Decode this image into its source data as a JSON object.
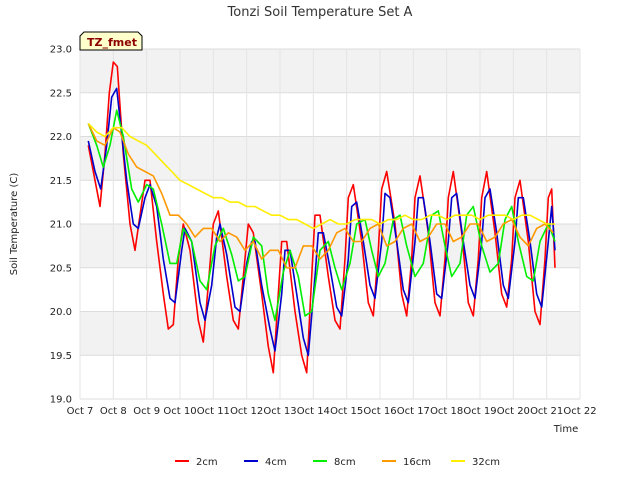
{
  "chart_data": {
    "type": "line",
    "title": "Tonzi Soil Temperature Set A",
    "xlabel": "Time",
    "ylabel": "Soil Temperature (C)",
    "station_label": "TZ_fmet",
    "xlim": [
      7,
      22
    ],
    "ylim": [
      19.0,
      23.0
    ],
    "x_ticks": [
      7,
      8,
      9,
      10,
      11,
      12,
      13,
      14,
      15,
      16,
      17,
      18,
      19,
      20,
      21,
      22
    ],
    "x_tick_labels": [
      "Oct 7",
      "Oct 8",
      "Oct 9",
      "Oct 10",
      "Oct 11",
      "Oct 12",
      "Oct 13",
      "Oct 14",
      "Oct 15",
      "Oct 16",
      "Oct 17",
      "Oct 18",
      "Oct 19",
      "Oct 20",
      "Oct 21",
      "Oct 22"
    ],
    "y_ticks": [
      19.0,
      19.5,
      20.0,
      20.5,
      21.0,
      21.5,
      22.0,
      22.5,
      23.0
    ],
    "y_tick_labels": [
      "19.0",
      "19.5",
      "20.0",
      "20.5",
      "21.0",
      "21.5",
      "22.0",
      "22.5",
      "23.0"
    ],
    "grid": true,
    "legend_position": "bottom",
    "series": [
      {
        "name": "2cm",
        "color": "#ff0000",
        "x": [
          7.25,
          7.45,
          7.6,
          7.75,
          7.88,
          8.0,
          8.12,
          8.3,
          8.5,
          8.65,
          8.8,
          8.95,
          9.1,
          9.3,
          9.5,
          9.65,
          9.8,
          9.95,
          10.1,
          10.3,
          10.55,
          10.7,
          10.85,
          11.0,
          11.15,
          11.4,
          11.6,
          11.75,
          11.9,
          12.05,
          12.2,
          12.45,
          12.65,
          12.8,
          12.95,
          13.05,
          13.2,
          13.45,
          13.65,
          13.8,
          13.95,
          14.05,
          14.2,
          14.45,
          14.65,
          14.8,
          14.95,
          15.05,
          15.2,
          15.45,
          15.65,
          15.8,
          15.95,
          16.05,
          16.2,
          16.45,
          16.65,
          16.8,
          16.95,
          17.05,
          17.2,
          17.45,
          17.65,
          17.8,
          17.95,
          18.05,
          18.2,
          18.45,
          18.65,
          18.8,
          18.95,
          19.05,
          19.2,
          19.45,
          19.65,
          19.8,
          19.95,
          20.05,
          20.2,
          20.45,
          20.65,
          20.8,
          20.95,
          21.05,
          21.15,
          21.25
        ],
        "values": [
          21.9,
          21.5,
          21.2,
          21.8,
          22.5,
          22.85,
          22.8,
          21.8,
          21.0,
          20.7,
          21.1,
          21.5,
          21.5,
          20.8,
          20.2,
          19.8,
          19.85,
          20.6,
          21.0,
          20.7,
          19.9,
          19.65,
          20.3,
          21.0,
          21.15,
          20.4,
          19.9,
          19.8,
          20.4,
          21.0,
          20.9,
          20.2,
          19.6,
          19.3,
          20.2,
          20.8,
          20.8,
          20.0,
          19.5,
          19.3,
          20.4,
          21.1,
          21.1,
          20.4,
          19.9,
          19.8,
          20.6,
          21.3,
          21.45,
          20.8,
          20.1,
          19.95,
          20.7,
          21.4,
          21.6,
          21.0,
          20.2,
          19.95,
          20.6,
          21.3,
          21.55,
          20.9,
          20.1,
          19.95,
          20.6,
          21.3,
          21.6,
          20.9,
          20.1,
          19.95,
          20.6,
          21.3,
          21.6,
          20.9,
          20.2,
          20.05,
          20.6,
          21.3,
          21.5,
          20.8,
          20.0,
          19.85,
          20.6,
          21.3,
          21.4,
          20.5
        ]
      },
      {
        "name": "4cm",
        "color": "#0000cc",
        "x": [
          7.25,
          7.45,
          7.62,
          7.8,
          7.95,
          8.1,
          8.2,
          8.4,
          8.6,
          8.75,
          8.95,
          9.1,
          9.3,
          9.5,
          9.7,
          9.85,
          10.05,
          10.15,
          10.35,
          10.6,
          10.75,
          10.95,
          11.1,
          11.2,
          11.4,
          11.65,
          11.8,
          12.0,
          12.15,
          12.25,
          12.45,
          12.7,
          12.85,
          13.05,
          13.15,
          13.3,
          13.5,
          13.7,
          13.85,
          14.05,
          14.15,
          14.3,
          14.5,
          14.7,
          14.85,
          15.05,
          15.15,
          15.3,
          15.5,
          15.7,
          15.85,
          16.05,
          16.15,
          16.3,
          16.5,
          16.7,
          16.85,
          17.05,
          17.15,
          17.3,
          17.5,
          17.7,
          17.85,
          18.05,
          18.15,
          18.3,
          18.5,
          18.7,
          18.85,
          19.05,
          19.15,
          19.3,
          19.5,
          19.7,
          19.85,
          20.05,
          20.15,
          20.3,
          20.5,
          20.7,
          20.85,
          21.05,
          21.15,
          21.25
        ],
        "values": [
          21.95,
          21.6,
          21.4,
          21.9,
          22.45,
          22.55,
          22.2,
          21.5,
          21.0,
          20.95,
          21.3,
          21.45,
          21.2,
          20.6,
          20.15,
          20.1,
          20.7,
          20.95,
          20.8,
          20.1,
          19.9,
          20.3,
          20.85,
          21.0,
          20.65,
          20.05,
          20.0,
          20.55,
          20.8,
          20.8,
          20.3,
          19.8,
          19.55,
          20.2,
          20.7,
          20.7,
          20.2,
          19.7,
          19.5,
          20.4,
          20.9,
          20.9,
          20.5,
          20.05,
          19.95,
          20.6,
          21.2,
          21.25,
          20.8,
          20.3,
          20.15,
          20.8,
          21.35,
          21.3,
          20.8,
          20.25,
          20.1,
          20.8,
          21.3,
          21.3,
          20.8,
          20.2,
          20.15,
          20.8,
          21.3,
          21.35,
          20.8,
          20.3,
          20.15,
          20.8,
          21.3,
          21.4,
          20.9,
          20.3,
          20.15,
          20.8,
          21.3,
          21.3,
          20.8,
          20.2,
          20.05,
          20.8,
          21.2,
          20.7
        ]
      },
      {
        "name": "8cm",
        "color": "#00ee00",
        "x": [
          7.25,
          7.5,
          7.7,
          7.9,
          8.1,
          8.3,
          8.55,
          8.75,
          9.0,
          9.2,
          9.45,
          9.7,
          9.9,
          10.1,
          10.35,
          10.6,
          10.8,
          11.05,
          11.3,
          11.55,
          11.75,
          11.95,
          12.2,
          12.45,
          12.65,
          12.85,
          13.1,
          13.3,
          13.55,
          13.75,
          13.95,
          14.2,
          14.45,
          14.65,
          14.85,
          15.1,
          15.3,
          15.55,
          15.75,
          15.95,
          16.15,
          16.4,
          16.6,
          16.8,
          17.05,
          17.3,
          17.55,
          17.75,
          17.95,
          18.15,
          18.4,
          18.6,
          18.8,
          19.05,
          19.3,
          19.55,
          19.75,
          19.95,
          20.15,
          20.4,
          20.6,
          20.8,
          21.05,
          21.25
        ],
        "values": [
          22.15,
          21.9,
          21.65,
          21.9,
          22.3,
          22.0,
          21.4,
          21.25,
          21.45,
          21.4,
          21.0,
          20.55,
          20.55,
          20.95,
          20.8,
          20.35,
          20.25,
          20.75,
          20.95,
          20.65,
          20.35,
          20.4,
          20.85,
          20.75,
          20.2,
          19.9,
          20.45,
          20.7,
          20.4,
          19.95,
          20.0,
          20.7,
          20.8,
          20.5,
          20.25,
          20.55,
          21.0,
          21.05,
          20.7,
          20.4,
          20.55,
          21.05,
          21.1,
          20.75,
          20.4,
          20.55,
          21.1,
          21.15,
          20.75,
          20.4,
          20.55,
          21.1,
          21.2,
          20.75,
          20.45,
          20.55,
          21.05,
          21.2,
          20.8,
          20.4,
          20.35,
          20.8,
          21.0,
          20.8
        ]
      },
      {
        "name": "16cm",
        "color": "#ff9900",
        "x": [
          7.25,
          7.5,
          7.75,
          8.0,
          8.2,
          8.45,
          8.7,
          8.95,
          9.2,
          9.45,
          9.7,
          9.95,
          10.2,
          10.45,
          10.7,
          10.95,
          11.2,
          11.45,
          11.7,
          11.95,
          12.2,
          12.45,
          12.7,
          12.95,
          13.2,
          13.45,
          13.7,
          13.95,
          14.2,
          14.45,
          14.7,
          14.95,
          15.2,
          15.45,
          15.7,
          15.95,
          16.2,
          16.45,
          16.7,
          16.95,
          17.2,
          17.45,
          17.7,
          17.95,
          18.2,
          18.45,
          18.7,
          18.95,
          19.2,
          19.45,
          19.7,
          19.95,
          20.2,
          20.45,
          20.7,
          20.95,
          21.2
        ],
        "values": [
          22.15,
          21.95,
          21.9,
          22.1,
          22.05,
          21.8,
          21.65,
          21.6,
          21.55,
          21.35,
          21.1,
          21.1,
          21.0,
          20.85,
          20.95,
          20.95,
          20.8,
          20.9,
          20.85,
          20.7,
          20.8,
          20.6,
          20.7,
          20.7,
          20.5,
          20.5,
          20.75,
          20.75,
          20.6,
          20.7,
          20.9,
          20.95,
          20.8,
          20.8,
          20.95,
          21.0,
          20.75,
          20.8,
          20.95,
          21.0,
          20.8,
          20.85,
          21.0,
          21.0,
          20.8,
          20.85,
          21.0,
          21.0,
          20.8,
          20.85,
          21.0,
          21.05,
          20.85,
          20.75,
          20.95,
          21.0,
          20.9
        ]
      },
      {
        "name": "32cm",
        "color": "#ffee00",
        "x": [
          7.25,
          7.5,
          7.75,
          8.0,
          8.25,
          8.5,
          8.75,
          9.0,
          9.25,
          9.5,
          9.75,
          10.0,
          10.25,
          10.5,
          10.75,
          11.0,
          11.25,
          11.5,
          11.75,
          12.0,
          12.25,
          12.5,
          12.75,
          13.0,
          13.25,
          13.5,
          13.75,
          14.0,
          14.25,
          14.5,
          14.75,
          15.0,
          15.25,
          15.5,
          15.75,
          16.0,
          16.25,
          16.5,
          16.75,
          17.0,
          17.25,
          17.5,
          17.75,
          18.0,
          18.25,
          18.5,
          18.75,
          19.0,
          19.25,
          19.5,
          19.75,
          20.0,
          20.25,
          20.5,
          20.75,
          21.0,
          21.25
        ],
        "values": [
          22.15,
          22.05,
          22.0,
          22.1,
          22.1,
          22.0,
          21.95,
          21.9,
          21.8,
          21.7,
          21.6,
          21.5,
          21.45,
          21.4,
          21.35,
          21.3,
          21.3,
          21.25,
          21.25,
          21.2,
          21.2,
          21.15,
          21.1,
          21.1,
          21.05,
          21.05,
          21.0,
          20.95,
          21.0,
          21.05,
          21.0,
          21.0,
          21.05,
          21.05,
          21.05,
          21.0,
          21.05,
          21.05,
          21.1,
          21.05,
          21.05,
          21.1,
          21.1,
          21.05,
          21.1,
          21.1,
          21.1,
          21.05,
          21.1,
          21.1,
          21.1,
          21.05,
          21.1,
          21.1,
          21.05,
          21.0,
          21.0
        ]
      }
    ]
  }
}
